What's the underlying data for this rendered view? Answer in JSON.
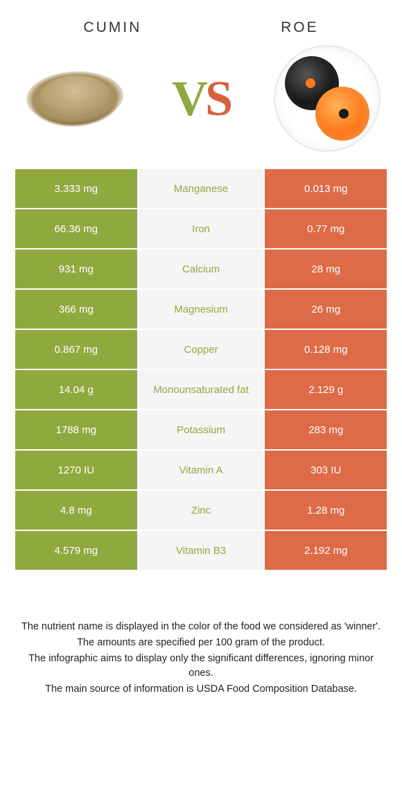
{
  "colors": {
    "left": "#8fa93f",
    "right": "#dd6b47",
    "mid_bg": "#f5f5f5",
    "text": "#ffffff"
  },
  "header": {
    "left_title": "Cumin",
    "right_title": "Roe"
  },
  "vs": {
    "v": "V",
    "s": "S"
  },
  "rows": [
    {
      "left": "3.333 mg",
      "label": "Manganese",
      "right": "0.013 mg",
      "winner": "left"
    },
    {
      "left": "66.36 mg",
      "label": "Iron",
      "right": "0.77 mg",
      "winner": "left"
    },
    {
      "left": "931 mg",
      "label": "Calcium",
      "right": "28 mg",
      "winner": "left"
    },
    {
      "left": "366 mg",
      "label": "Magnesium",
      "right": "26 mg",
      "winner": "left"
    },
    {
      "left": "0.867 mg",
      "label": "Copper",
      "right": "0.128 mg",
      "winner": "left"
    },
    {
      "left": "14.04 g",
      "label": "Monounsaturated fat",
      "right": "2.129 g",
      "winner": "left"
    },
    {
      "left": "1788 mg",
      "label": "Potassium",
      "right": "283 mg",
      "winner": "left"
    },
    {
      "left": "1270 IU",
      "label": "Vitamin A",
      "right": "303 IU",
      "winner": "left"
    },
    {
      "left": "4.8 mg",
      "label": "Zinc",
      "right": "1.28 mg",
      "winner": "left"
    },
    {
      "left": "4.579 mg",
      "label": "Vitamin B3",
      "right": "2.192 mg",
      "winner": "left"
    }
  ],
  "caption": {
    "l1": "The nutrient name is displayed in the color of the food we considered as 'winner'.",
    "l2": "The amounts are specified per 100 gram of the product.",
    "l3": "The infographic aims to display only the significant differences, ignoring minor ones.",
    "l4": "The main source of information is USDA Food Composition Database."
  }
}
